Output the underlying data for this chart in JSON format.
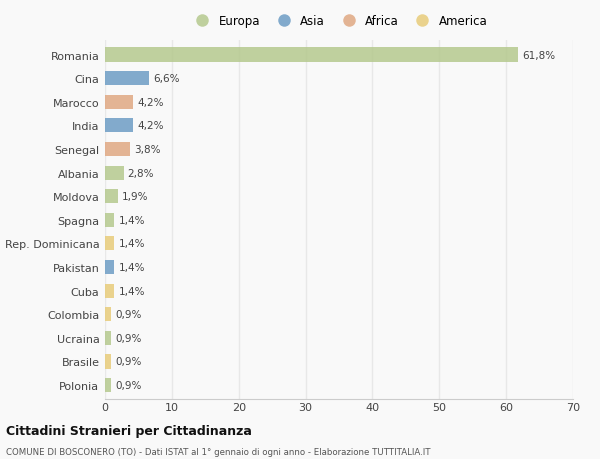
{
  "countries": [
    "Romania",
    "Cina",
    "Marocco",
    "India",
    "Senegal",
    "Albania",
    "Moldova",
    "Spagna",
    "Rep. Dominicana",
    "Pakistan",
    "Cuba",
    "Colombia",
    "Ucraina",
    "Brasile",
    "Polonia"
  ],
  "values": [
    61.8,
    6.6,
    4.2,
    4.2,
    3.8,
    2.8,
    1.9,
    1.4,
    1.4,
    1.4,
    1.4,
    0.9,
    0.9,
    0.9,
    0.9
  ],
  "labels": [
    "61,8%",
    "6,6%",
    "4,2%",
    "4,2%",
    "3,8%",
    "2,8%",
    "1,9%",
    "1,4%",
    "1,4%",
    "1,4%",
    "1,4%",
    "0,9%",
    "0,9%",
    "0,9%",
    "0,9%"
  ],
  "continents": [
    "Europa",
    "Asia",
    "Africa",
    "Asia",
    "Africa",
    "Europa",
    "Europa",
    "Europa",
    "America",
    "Asia",
    "America",
    "America",
    "Europa",
    "America",
    "Europa"
  ],
  "continent_colors": {
    "Europa": "#b5c98e",
    "Asia": "#6d9dc5",
    "Africa": "#e0a882",
    "America": "#e8cc7a"
  },
  "legend_order": [
    "Europa",
    "Asia",
    "Africa",
    "America"
  ],
  "title": "Cittadini Stranieri per Cittadinanza",
  "subtitle": "COMUNE DI BOSCONERO (TO) - Dati ISTAT al 1° gennaio di ogni anno - Elaborazione TUTTITALIA.IT",
  "xlim": [
    0,
    70
  ],
  "xticks": [
    0,
    10,
    20,
    30,
    40,
    50,
    60,
    70
  ],
  "background_color": "#f9f9f9",
  "grid_color": "#e8e8e8",
  "bar_height": 0.6
}
